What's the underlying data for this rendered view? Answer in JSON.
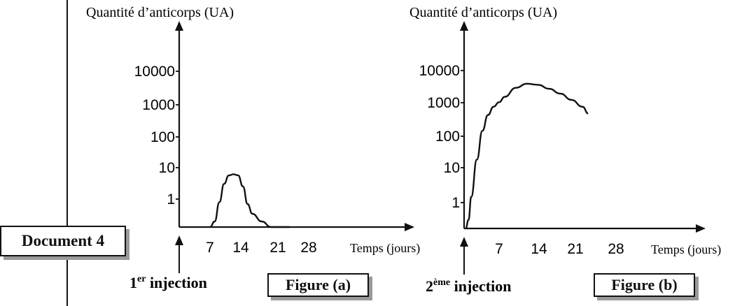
{
  "document_label": "Document 4",
  "chart_data": [
    {
      "type": "line",
      "figure_label": "Figure (a)",
      "title": "",
      "ylabel": "Quantité d’anticorps (UA)",
      "xlabel": "Temps (jours)",
      "y_scale": "log",
      "y_ticks": [
        "10000",
        "1000",
        "100",
        "10",
        "1"
      ],
      "x_ticks": [
        "7",
        "14",
        "21",
        "28"
      ],
      "injection_label": {
        "main": "1",
        "sup": "er",
        "rest": " injection"
      },
      "injection_day": 0,
      "series": [
        {
          "x": [
            7,
            8,
            9,
            10,
            11,
            12,
            13,
            14,
            15,
            16,
            18,
            20,
            22,
            24
          ],
          "y": [
            0.05,
            0.2,
            0.8,
            3,
            5.5,
            6,
            5.5,
            2.5,
            0.7,
            0.35,
            0.2,
            0.11,
            0.07,
            0.05
          ]
        }
      ]
    },
    {
      "type": "line",
      "figure_label": "Figure (b)",
      "title": "",
      "ylabel": "Quantité d’anticorps (UA)",
      "xlabel": "Temps (jours)",
      "y_scale": "log",
      "y_ticks": [
        "10000",
        "1000",
        "100",
        "10",
        "1"
      ],
      "x_ticks": [
        "7",
        "14",
        "21",
        "28"
      ],
      "injection_label": {
        "main": "2",
        "sup": "ème",
        "rest": " injection"
      },
      "injection_day": 0,
      "series": [
        {
          "x": [
            1,
            1.5,
            2,
            3,
            4,
            5,
            6,
            7,
            8,
            10,
            12,
            14,
            16,
            18,
            20,
            22,
            23
          ],
          "y": [
            0.05,
            0.3,
            1.5,
            20,
            150,
            450,
            800,
            1100,
            1600,
            3000,
            4000,
            3700,
            2800,
            2000,
            1300,
            800,
            500
          ]
        }
      ]
    }
  ]
}
